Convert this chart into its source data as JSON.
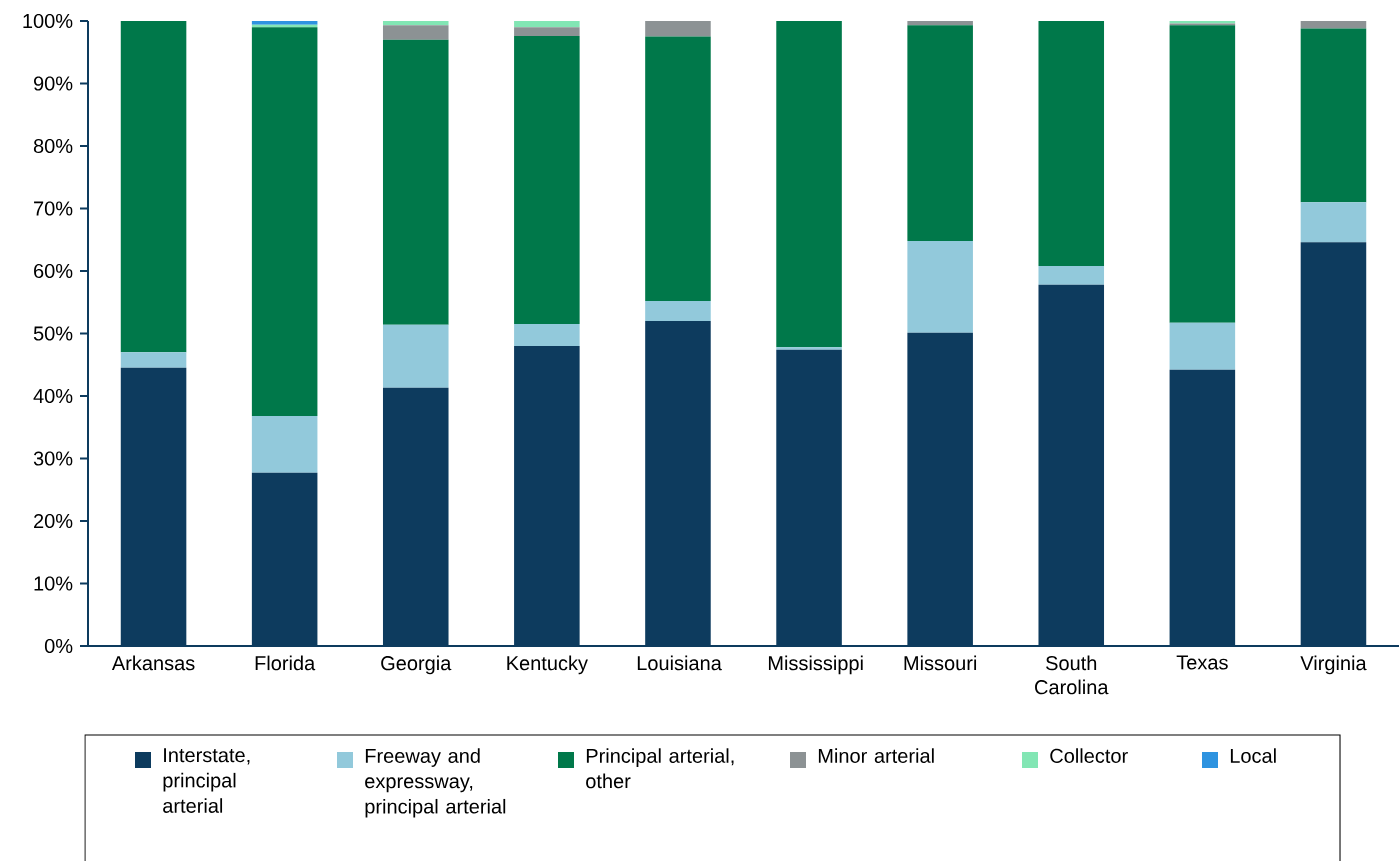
{
  "chart_data": {
    "type": "bar",
    "stacked": true,
    "legend": "bottom",
    "categories": [
      "Arkansas",
      "Florida",
      "Georgia",
      "Kentucky",
      "Louisiana",
      "Mississippi",
      "Missouri",
      "South Carolina",
      "Texas",
      "Virginia"
    ],
    "series": [
      {
        "name": "Interstate, principal arterial",
        "color": "#0d3b5e",
        "values": [
          44.5,
          27.7,
          41.3,
          48.0,
          52.0,
          47.4,
          50.1,
          57.8,
          44.2,
          64.6
        ]
      },
      {
        "name": "Freeway and expressway, principal arterial",
        "color": "#92c9db",
        "values": [
          2.5,
          9.1,
          10.1,
          3.5,
          3.2,
          0.4,
          14.7,
          3.0,
          7.5,
          6.4
        ]
      },
      {
        "name": "Principal arterial, other",
        "color": "#00784a",
        "values": [
          53.0,
          62.2,
          45.6,
          46.1,
          42.3,
          52.2,
          34.5,
          39.2,
          47.6,
          27.8
        ]
      },
      {
        "name": "Minor arterial",
        "color": "#8c9294",
        "values": [
          0,
          0,
          2.3,
          1.4,
          2.5,
          0,
          0.7,
          0,
          0.3,
          1.2
        ]
      },
      {
        "name": "Collector",
        "color": "#82e6b4",
        "values": [
          0,
          0.4,
          0.7,
          1.0,
          0,
          0,
          0,
          0,
          0.4,
          0
        ]
      },
      {
        "name": "Local",
        "color": "#2e93e0",
        "values": [
          0,
          0.6,
          0,
          0,
          0,
          0,
          0,
          0,
          0,
          0
        ]
      }
    ],
    "ylim": [
      0,
      100
    ],
    "yticks": [
      {
        "value": 0,
        "label": "0%"
      },
      {
        "value": 10,
        "label": "10%"
      },
      {
        "value": 20,
        "label": "20%"
      },
      {
        "value": 30,
        "label": "30%"
      },
      {
        "value": 40,
        "label": "40%"
      },
      {
        "value": 50,
        "label": "50%"
      },
      {
        "value": 60,
        "label": "60%"
      },
      {
        "value": 70,
        "label": "70%"
      },
      {
        "value": 80,
        "label": "80%"
      },
      {
        "value": 90,
        "label": "90%"
      },
      {
        "value": 100,
        "label": "100%"
      }
    ],
    "grid": false
  }
}
